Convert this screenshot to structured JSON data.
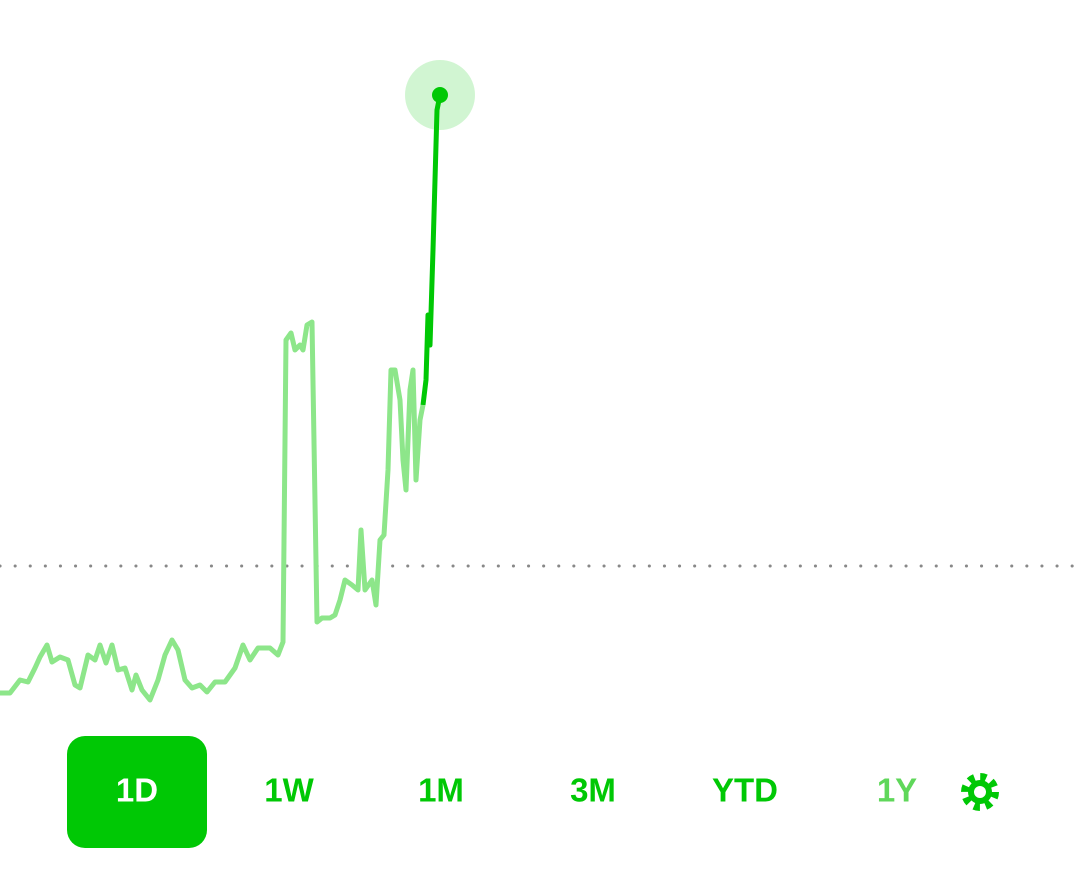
{
  "chart_data": {
    "type": "line",
    "x": [
      0,
      10,
      20,
      28,
      35,
      40,
      47,
      52,
      60,
      68,
      75,
      80,
      88,
      95,
      100,
      106,
      112,
      118,
      125,
      132,
      136,
      142,
      150,
      158,
      165,
      172,
      178,
      185,
      192,
      200,
      207,
      215,
      225,
      235,
      243,
      250,
      258,
      270,
      278,
      283,
      286,
      291,
      295,
      300,
      303,
      307,
      312,
      317,
      322,
      330,
      335,
      340,
      345,
      352,
      358,
      361,
      365,
      372,
      376,
      380,
      384,
      388,
      391,
      395,
      400,
      403,
      406,
      410,
      413,
      416,
      420,
      423,
      426,
      428,
      430,
      433,
      437,
      440
    ],
    "values": [
      27,
      27,
      40,
      38,
      52,
      63,
      75,
      58,
      63,
      60,
      35,
      32,
      65,
      60,
      75,
      57,
      75,
      50,
      52,
      30,
      45,
      30,
      20,
      40,
      65,
      80,
      70,
      40,
      32,
      35,
      28,
      38,
      38,
      52,
      75,
      60,
      72,
      72,
      65,
      78,
      380,
      387,
      370,
      375,
      370,
      395,
      398,
      98,
      102,
      102,
      105,
      120,
      140,
      135,
      130,
      190,
      130,
      140,
      115,
      180,
      185,
      250,
      350,
      350,
      320,
      260,
      230,
      330,
      350,
      240,
      300,
      315,
      340,
      405,
      375,
      470,
      610,
      625
    ],
    "color": "#8de68a",
    "highlight_from": 71,
    "highlight_color": "#00c805",
    "reference_line": 154,
    "xlim": [
      0,
      1080
    ],
    "ylim": [
      0,
      660
    ]
  },
  "range_buttons": [
    "1D",
    "1W",
    "1M",
    "3M",
    "YTD",
    "1Y"
  ],
  "selected_range": 0
}
